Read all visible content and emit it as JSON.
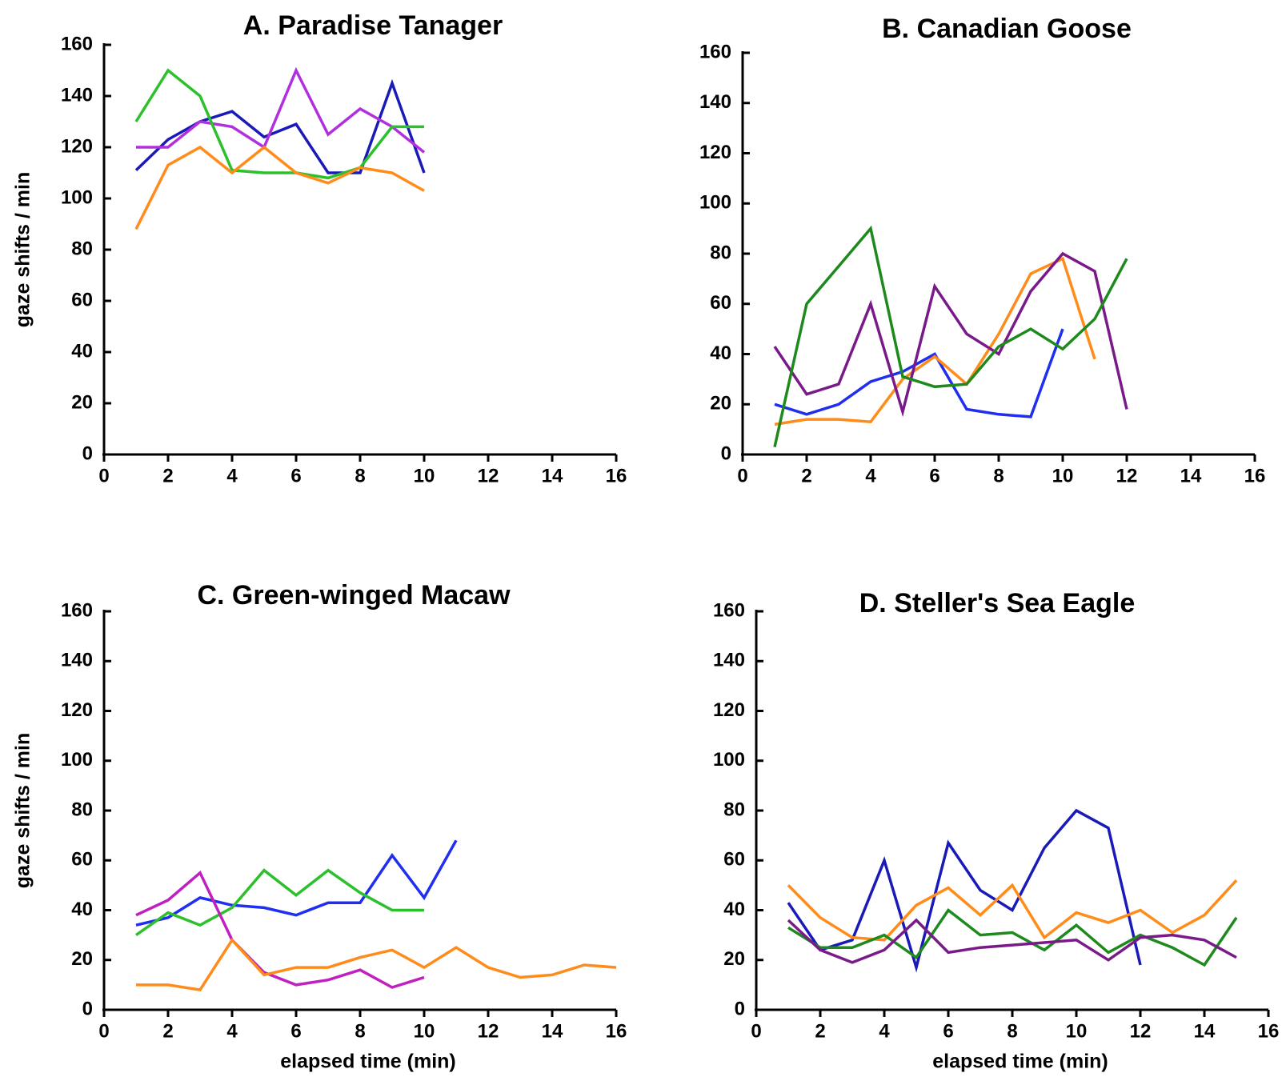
{
  "figure": {
    "x_tick_labels": [
      "0",
      "2",
      "4",
      "6",
      "8",
      "10",
      "12",
      "14",
      "16"
    ],
    "y_tick_labels": [
      "0",
      "20",
      "40",
      "60",
      "80",
      "100",
      "120",
      "140",
      "160"
    ]
  },
  "chart_data": [
    {
      "type": "line",
      "title": "A.  Paradise Tanager",
      "ylabel": "gaze shifts / min",
      "xlabel": "",
      "xlim": [
        0,
        16
      ],
      "ylim": [
        0,
        160
      ],
      "series": [
        {
          "name": "series-1",
          "color": "#1a1ab8",
          "x": [
            1,
            2,
            3,
            4,
            5,
            6,
            7,
            8,
            9,
            10
          ],
          "y": [
            111,
            123,
            130,
            134,
            124,
            129,
            110,
            110,
            145,
            110
          ]
        },
        {
          "name": "series-2",
          "color": "#b030e0",
          "x": [
            1,
            2,
            3,
            4,
            5,
            6,
            7,
            8,
            9,
            10
          ],
          "y": [
            120,
            120,
            130,
            128,
            120,
            150,
            125,
            135,
            128,
            118
          ]
        },
        {
          "name": "series-3",
          "color": "#2cc02c",
          "x": [
            1,
            2,
            3,
            4,
            5,
            6,
            7,
            8,
            9,
            10
          ],
          "y": [
            130,
            150,
            140,
            111,
            110,
            110,
            108,
            112,
            128,
            128
          ]
        },
        {
          "name": "series-4",
          "color": "#ff8c1a",
          "x": [
            1,
            2,
            3,
            4,
            5,
            6,
            7,
            8,
            9,
            10
          ],
          "y": [
            88,
            113,
            120,
            110,
            120,
            110,
            106,
            112,
            110,
            103
          ]
        }
      ]
    },
    {
      "type": "line",
      "title": "B.  Canadian Goose",
      "ylabel": "",
      "xlabel": "",
      "xlim": [
        0,
        16
      ],
      "ylim": [
        0,
        160
      ],
      "series": [
        {
          "name": "series-1",
          "color": "#1f2ef0",
          "x": [
            1,
            2,
            3,
            4,
            5,
            6,
            7,
            8,
            9,
            10
          ],
          "y": [
            20,
            16,
            20,
            29,
            33,
            40,
            18,
            16,
            15,
            50
          ]
        },
        {
          "name": "series-2",
          "color": "#ff8c1a",
          "x": [
            1,
            2,
            3,
            4,
            5,
            6,
            7,
            8,
            9,
            10,
            11
          ],
          "y": [
            12,
            14,
            14,
            13,
            30,
            39,
            28,
            48,
            72,
            78,
            38
          ]
        },
        {
          "name": "series-3",
          "color": "#7a1a8a",
          "x": [
            1,
            2,
            3,
            4,
            5,
            6,
            7,
            8,
            9,
            10,
            11,
            12
          ],
          "y": [
            43,
            24,
            28,
            60,
            17,
            67,
            48,
            40,
            65,
            80,
            73,
            18
          ]
        },
        {
          "name": "series-4",
          "color": "#1e8a1e",
          "x": [
            1,
            2,
            3,
            4,
            5,
            6,
            7,
            8,
            9,
            10,
            11,
            12
          ],
          "y": [
            3,
            60,
            75,
            90,
            31,
            27,
            28,
            43,
            50,
            42,
            54,
            78
          ]
        }
      ]
    },
    {
      "type": "line",
      "title": "C.  Green-winged Macaw",
      "ylabel": "gaze shifts / min",
      "xlabel": "elapsed time (min)",
      "xlim": [
        0,
        16
      ],
      "ylim": [
        0,
        160
      ],
      "series": [
        {
          "name": "series-1",
          "color": "#1f2ef0",
          "x": [
            1,
            2,
            3,
            4,
            5,
            6,
            7,
            8,
            9,
            10,
            11
          ],
          "y": [
            34,
            37,
            45,
            42,
            41,
            38,
            43,
            43,
            62,
            45,
            68
          ]
        },
        {
          "name": "series-2",
          "color": "#2cc02c",
          "x": [
            1,
            2,
            3,
            4,
            5,
            6,
            7,
            8,
            9,
            10
          ],
          "y": [
            30,
            39,
            34,
            41,
            56,
            46,
            56,
            47,
            40,
            40
          ]
        },
        {
          "name": "series-3",
          "color": "#c020c0",
          "x": [
            1,
            2,
            3,
            4,
            5,
            6,
            7,
            8,
            9,
            10
          ],
          "y": [
            38,
            44,
            55,
            28,
            15,
            10,
            12,
            16,
            9,
            13
          ]
        },
        {
          "name": "series-4",
          "color": "#ff8c1a",
          "x": [
            1,
            2,
            3,
            4,
            5,
            6,
            7,
            8,
            9,
            10,
            11,
            12,
            13,
            14,
            15,
            16
          ],
          "y": [
            10,
            10,
            8,
            28,
            14,
            17,
            17,
            21,
            24,
            17,
            25,
            17,
            13,
            14,
            18,
            17
          ]
        }
      ]
    },
    {
      "type": "line",
      "title": "D.  Steller's Sea Eagle",
      "ylabel": "",
      "xlabel": "elapsed time (min)",
      "xlim": [
        0,
        16
      ],
      "ylim": [
        0,
        160
      ],
      "series": [
        {
          "name": "series-1",
          "color": "#1a1ab8",
          "x": [
            1,
            2,
            3,
            4,
            5,
            6,
            7,
            8,
            9,
            10,
            11,
            12
          ],
          "y": [
            43,
            24,
            28,
            60,
            17,
            67,
            48,
            40,
            65,
            80,
            73,
            18
          ]
        },
        {
          "name": "series-2",
          "color": "#ff8c1a",
          "x": [
            1,
            2,
            3,
            4,
            5,
            6,
            7,
            8,
            9,
            10,
            11,
            12,
            13,
            14,
            15
          ],
          "y": [
            50,
            37,
            29,
            28,
            42,
            49,
            38,
            50,
            29,
            39,
            35,
            40,
            31,
            38,
            52
          ]
        },
        {
          "name": "series-3",
          "color": "#1e8a1e",
          "x": [
            1,
            2,
            3,
            4,
            5,
            6,
            7,
            8,
            9,
            10,
            11,
            12,
            13,
            14,
            15
          ],
          "y": [
            33,
            25,
            25,
            30,
            21,
            40,
            30,
            31,
            24,
            34,
            23,
            30,
            25,
            18,
            37
          ]
        },
        {
          "name": "series-4",
          "color": "#7a1a8a",
          "x": [
            1,
            2,
            3,
            4,
            5,
            6,
            7,
            8,
            9,
            10,
            11,
            12,
            13,
            14,
            15
          ],
          "y": [
            36,
            24,
            19,
            24,
            36,
            23,
            25,
            26,
            27,
            28,
            20,
            29,
            30,
            28,
            21
          ]
        }
      ]
    }
  ]
}
